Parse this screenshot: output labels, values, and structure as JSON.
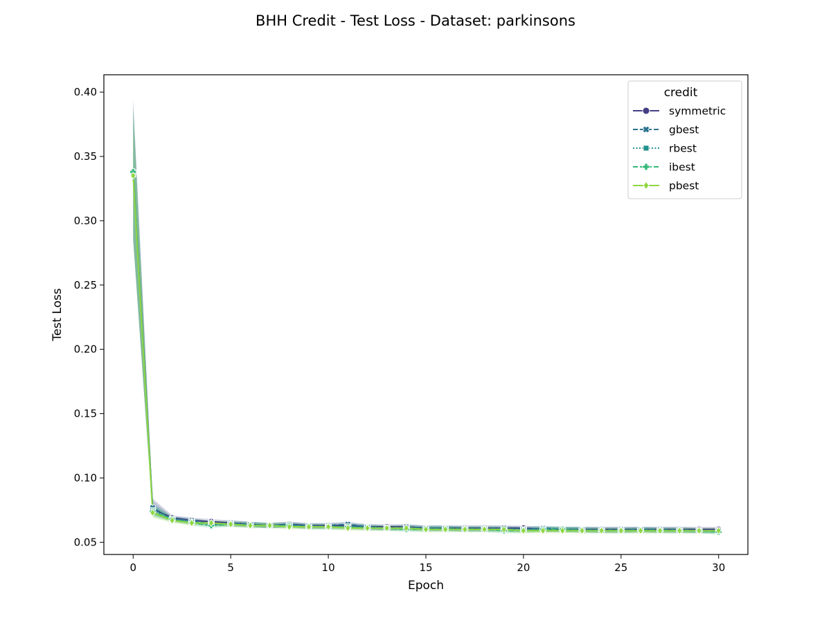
{
  "chart_data": {
    "type": "line",
    "title": "BHH Credit - Test Loss - Dataset: parkinsons",
    "xlabel": "Epoch",
    "ylabel": "Test Loss",
    "xlim": [
      -1.5,
      31.5
    ],
    "ylim": [
      0.0405,
      0.4135
    ],
    "xticks": [
      0,
      5,
      10,
      15,
      20,
      25,
      30
    ],
    "yticks": [
      0.05,
      0.1,
      0.15,
      0.2,
      0.25,
      0.3,
      0.35,
      0.4
    ],
    "xtick_labels": [
      "0",
      "5",
      "10",
      "15",
      "20",
      "25",
      "30"
    ],
    "ytick_labels": [
      "0.05",
      "0.10",
      "0.15",
      "0.20",
      "0.25",
      "0.30",
      "0.35",
      "0.40"
    ],
    "grid": false,
    "legend": {
      "title": "credit",
      "placement": "top-right"
    },
    "x": [
      0,
      1,
      2,
      3,
      4,
      5,
      6,
      7,
      8,
      9,
      10,
      11,
      12,
      13,
      14,
      15,
      16,
      17,
      18,
      19,
      20,
      21,
      22,
      23,
      24,
      25,
      26,
      27,
      28,
      29,
      30
    ],
    "series": [
      {
        "name": "symmetric",
        "color": "#433e85",
        "dash": "solid",
        "marker": "circle",
        "values": [
          0.337,
          0.076,
          0.069,
          0.067,
          0.066,
          0.065,
          0.064,
          0.063,
          0.064,
          0.063,
          0.063,
          0.063,
          0.062,
          0.062,
          0.062,
          0.061,
          0.061,
          0.061,
          0.061,
          0.061,
          0.061,
          0.06,
          0.06,
          0.06,
          0.06,
          0.06,
          0.06,
          0.06,
          0.06,
          0.06,
          0.06
        ],
        "band": [
          [
            0.285,
            0.395
          ],
          [
            0.072,
            0.084
          ],
          [
            0.067,
            0.071
          ],
          [
            0.065,
            0.069
          ],
          [
            0.064,
            0.068
          ],
          [
            0.063,
            0.067
          ],
          [
            0.062,
            0.066
          ],
          [
            0.061,
            0.065
          ],
          [
            0.062,
            0.066
          ],
          [
            0.061,
            0.065
          ],
          [
            0.061,
            0.065
          ],
          [
            0.061,
            0.065
          ],
          [
            0.06,
            0.064
          ],
          [
            0.06,
            0.064
          ],
          [
            0.06,
            0.064
          ],
          [
            0.059,
            0.063
          ],
          [
            0.059,
            0.063
          ],
          [
            0.059,
            0.063
          ],
          [
            0.059,
            0.063
          ],
          [
            0.059,
            0.063
          ],
          [
            0.059,
            0.063
          ],
          [
            0.058,
            0.062
          ],
          [
            0.058,
            0.062
          ],
          [
            0.058,
            0.062
          ],
          [
            0.058,
            0.062
          ],
          [
            0.058,
            0.062
          ],
          [
            0.058,
            0.062
          ],
          [
            0.058,
            0.062
          ],
          [
            0.058,
            0.062
          ],
          [
            0.058,
            0.062
          ],
          [
            0.058,
            0.062
          ]
        ]
      },
      {
        "name": "gbest",
        "color": "#2c728e",
        "dash": "dashed",
        "marker": "x",
        "values": [
          0.338,
          0.077,
          0.068,
          0.067,
          0.064,
          0.065,
          0.064,
          0.063,
          0.064,
          0.062,
          0.063,
          0.064,
          0.062,
          0.061,
          0.062,
          0.061,
          0.061,
          0.061,
          0.061,
          0.061,
          0.06,
          0.061,
          0.06,
          0.06,
          0.06,
          0.06,
          0.06,
          0.06,
          0.06,
          0.059,
          0.059
        ],
        "band": [
          [
            0.284,
            0.392
          ],
          [
            0.072,
            0.082
          ],
          [
            0.066,
            0.07
          ],
          [
            0.065,
            0.069
          ],
          [
            0.062,
            0.066
          ],
          [
            0.063,
            0.067
          ],
          [
            0.062,
            0.066
          ],
          [
            0.061,
            0.065
          ],
          [
            0.062,
            0.066
          ],
          [
            0.06,
            0.064
          ],
          [
            0.061,
            0.065
          ],
          [
            0.062,
            0.066
          ],
          [
            0.06,
            0.064
          ],
          [
            0.059,
            0.063
          ],
          [
            0.06,
            0.064
          ],
          [
            0.059,
            0.063
          ],
          [
            0.059,
            0.063
          ],
          [
            0.059,
            0.063
          ],
          [
            0.059,
            0.063
          ],
          [
            0.059,
            0.063
          ],
          [
            0.058,
            0.062
          ],
          [
            0.059,
            0.063
          ],
          [
            0.058,
            0.062
          ],
          [
            0.058,
            0.062
          ],
          [
            0.058,
            0.062
          ],
          [
            0.058,
            0.062
          ],
          [
            0.058,
            0.062
          ],
          [
            0.058,
            0.062
          ],
          [
            0.058,
            0.062
          ],
          [
            0.057,
            0.061
          ],
          [
            0.057,
            0.061
          ]
        ]
      },
      {
        "name": "rbest",
        "color": "#21918c",
        "dash": "dotted",
        "marker": "square",
        "values": [
          0.336,
          0.075,
          0.068,
          0.066,
          0.065,
          0.064,
          0.064,
          0.063,
          0.063,
          0.063,
          0.062,
          0.062,
          0.062,
          0.061,
          0.061,
          0.061,
          0.061,
          0.06,
          0.06,
          0.06,
          0.06,
          0.06,
          0.06,
          0.06,
          0.059,
          0.059,
          0.06,
          0.059,
          0.059,
          0.059,
          0.059
        ],
        "band": [
          [
            0.286,
            0.388
          ],
          [
            0.071,
            0.08
          ],
          [
            0.066,
            0.07
          ],
          [
            0.064,
            0.068
          ],
          [
            0.063,
            0.067
          ],
          [
            0.062,
            0.066
          ],
          [
            0.062,
            0.066
          ],
          [
            0.061,
            0.065
          ],
          [
            0.061,
            0.065
          ],
          [
            0.061,
            0.065
          ],
          [
            0.06,
            0.064
          ],
          [
            0.06,
            0.064
          ],
          [
            0.06,
            0.064
          ],
          [
            0.059,
            0.063
          ],
          [
            0.059,
            0.063
          ],
          [
            0.059,
            0.063
          ],
          [
            0.059,
            0.063
          ],
          [
            0.058,
            0.062
          ],
          [
            0.058,
            0.062
          ],
          [
            0.058,
            0.062
          ],
          [
            0.058,
            0.062
          ],
          [
            0.058,
            0.062
          ],
          [
            0.058,
            0.062
          ],
          [
            0.058,
            0.062
          ],
          [
            0.057,
            0.061
          ],
          [
            0.057,
            0.061
          ],
          [
            0.058,
            0.062
          ],
          [
            0.057,
            0.061
          ],
          [
            0.057,
            0.061
          ],
          [
            0.057,
            0.061
          ],
          [
            0.057,
            0.061
          ]
        ]
      },
      {
        "name": "ibest",
        "color": "#35b779",
        "dash": "dashed",
        "marker": "plus",
        "values": [
          0.338,
          0.074,
          0.068,
          0.065,
          0.063,
          0.064,
          0.063,
          0.063,
          0.063,
          0.062,
          0.062,
          0.062,
          0.061,
          0.061,
          0.06,
          0.06,
          0.06,
          0.06,
          0.06,
          0.059,
          0.059,
          0.06,
          0.06,
          0.059,
          0.059,
          0.059,
          0.059,
          0.059,
          0.059,
          0.059,
          0.058
        ],
        "band": [
          [
            0.288,
            0.386
          ],
          [
            0.07,
            0.079
          ],
          [
            0.066,
            0.07
          ],
          [
            0.063,
            0.067
          ],
          [
            0.061,
            0.065
          ],
          [
            0.062,
            0.066
          ],
          [
            0.061,
            0.065
          ],
          [
            0.061,
            0.065
          ],
          [
            0.061,
            0.065
          ],
          [
            0.06,
            0.064
          ],
          [
            0.06,
            0.064
          ],
          [
            0.06,
            0.064
          ],
          [
            0.059,
            0.063
          ],
          [
            0.059,
            0.063
          ],
          [
            0.058,
            0.062
          ],
          [
            0.058,
            0.062
          ],
          [
            0.058,
            0.062
          ],
          [
            0.058,
            0.062
          ],
          [
            0.058,
            0.062
          ],
          [
            0.057,
            0.061
          ],
          [
            0.057,
            0.061
          ],
          [
            0.058,
            0.062
          ],
          [
            0.058,
            0.062
          ],
          [
            0.057,
            0.061
          ],
          [
            0.057,
            0.061
          ],
          [
            0.057,
            0.061
          ],
          [
            0.057,
            0.061
          ],
          [
            0.057,
            0.061
          ],
          [
            0.057,
            0.061
          ],
          [
            0.057,
            0.061
          ],
          [
            0.056,
            0.06
          ]
        ]
      },
      {
        "name": "pbest",
        "color": "#90d743",
        "dash": "solid",
        "marker": "diamond",
        "values": [
          0.335,
          0.073,
          0.067,
          0.065,
          0.065,
          0.064,
          0.063,
          0.063,
          0.062,
          0.062,
          0.062,
          0.061,
          0.061,
          0.061,
          0.061,
          0.06,
          0.06,
          0.06,
          0.06,
          0.06,
          0.059,
          0.059,
          0.059,
          0.059,
          0.059,
          0.059,
          0.059,
          0.059,
          0.059,
          0.059,
          0.059
        ],
        "band": [
          [
            0.287,
            0.385
          ],
          [
            0.069,
            0.078
          ],
          [
            0.065,
            0.069
          ],
          [
            0.063,
            0.067
          ],
          [
            0.063,
            0.067
          ],
          [
            0.062,
            0.066
          ],
          [
            0.061,
            0.065
          ],
          [
            0.061,
            0.065
          ],
          [
            0.06,
            0.064
          ],
          [
            0.06,
            0.064
          ],
          [
            0.06,
            0.064
          ],
          [
            0.059,
            0.063
          ],
          [
            0.059,
            0.063
          ],
          [
            0.059,
            0.063
          ],
          [
            0.059,
            0.063
          ],
          [
            0.058,
            0.062
          ],
          [
            0.058,
            0.062
          ],
          [
            0.058,
            0.062
          ],
          [
            0.058,
            0.062
          ],
          [
            0.058,
            0.062
          ],
          [
            0.057,
            0.061
          ],
          [
            0.057,
            0.061
          ],
          [
            0.057,
            0.061
          ],
          [
            0.057,
            0.061
          ],
          [
            0.057,
            0.061
          ],
          [
            0.057,
            0.061
          ],
          [
            0.057,
            0.061
          ],
          [
            0.057,
            0.061
          ],
          [
            0.057,
            0.061
          ],
          [
            0.057,
            0.061
          ],
          [
            0.057,
            0.061
          ]
        ]
      }
    ]
  }
}
